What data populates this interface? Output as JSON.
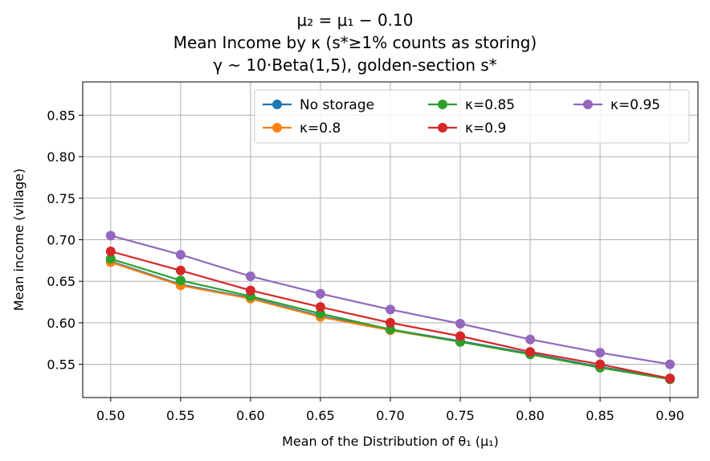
{
  "chart_data": {
    "type": "line",
    "title": [
      "μ₂ = μ₁ − 0.10",
      "Mean Income by κ (s*≥1% counts as storing)",
      "γ ~ 10·Beta(1,5), golden-section s*"
    ],
    "xlabel": "Mean of the Distribution of θ₁ (μ₁)",
    "ylabel": "Mean income (village)",
    "x": [
      0.5,
      0.55,
      0.6,
      0.65,
      0.7,
      0.75,
      0.8,
      0.85,
      0.9
    ],
    "xticks": [
      "0.50",
      "0.55",
      "0.60",
      "0.65",
      "0.70",
      "0.75",
      "0.80",
      "0.85",
      "0.90"
    ],
    "yticks": [
      "0.55",
      "0.60",
      "0.65",
      "0.70",
      "0.75",
      "0.80",
      "0.85"
    ],
    "ytick_values": [
      0.55,
      0.6,
      0.65,
      0.7,
      0.75,
      0.8,
      0.85
    ],
    "xlim": [
      0.48,
      0.92
    ],
    "ylim": [
      0.51,
      0.89
    ],
    "grid": true,
    "legend_position": "top-right",
    "legend_columns": 3,
    "series": [
      {
        "name": "No storage",
        "color": "#1f77b4",
        "values": [
          0.674,
          0.646,
          0.63,
          0.608,
          0.592,
          0.578,
          0.563,
          0.547,
          0.533
        ]
      },
      {
        "name": "κ=0.8",
        "color": "#ff7f0e",
        "values": [
          0.673,
          0.645,
          0.629,
          0.607,
          0.591,
          0.577,
          0.562,
          0.546,
          0.532
        ]
      },
      {
        "name": "κ=0.85",
        "color": "#2ca02c",
        "values": [
          0.677,
          0.651,
          0.632,
          0.611,
          0.592,
          0.577,
          0.562,
          0.546,
          0.532
        ]
      },
      {
        "name": "κ=0.9",
        "color": "#d62728",
        "values": [
          0.686,
          0.663,
          0.639,
          0.619,
          0.6,
          0.584,
          0.565,
          0.55,
          0.533
        ]
      },
      {
        "name": "κ=0.95",
        "color": "#9467bd",
        "values": [
          0.705,
          0.682,
          0.656,
          0.635,
          0.616,
          0.599,
          0.58,
          0.564,
          0.55
        ]
      }
    ]
  }
}
